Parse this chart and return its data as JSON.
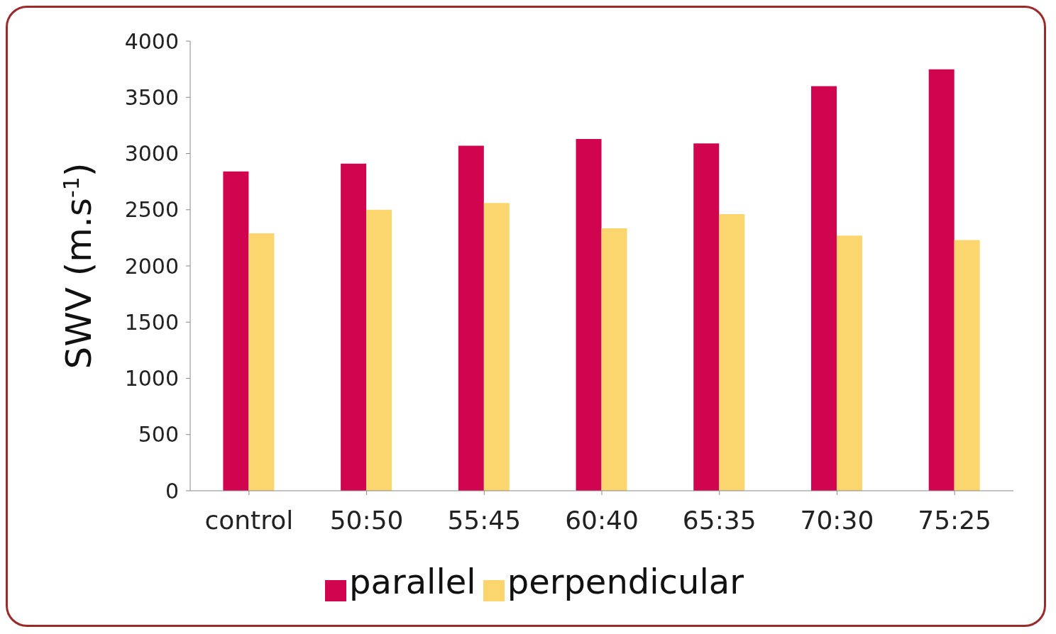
{
  "chart_data": {
    "type": "bar",
    "ylabel": "SWV (m.s$^{-1}$)",
    "categories": [
      "control",
      "50:50",
      "55:45",
      "60:40",
      "65:35",
      "70:30",
      "75:25"
    ],
    "series": [
      {
        "name": "parallel",
        "color": "#d0044f",
        "values": [
          2840,
          2910,
          3070,
          3130,
          3090,
          3600,
          3750
        ]
      },
      {
        "name": "perpendicular",
        "color": "#fbd66e",
        "values": [
          2290,
          2500,
          2560,
          2335,
          2460,
          2270,
          2230
        ]
      }
    ],
    "ylim": [
      0,
      4000
    ],
    "yticks": [
      0,
      500,
      1000,
      1500,
      2000,
      2500,
      3000,
      3500,
      4000
    ],
    "grid": false,
    "legend": "bottom"
  }
}
